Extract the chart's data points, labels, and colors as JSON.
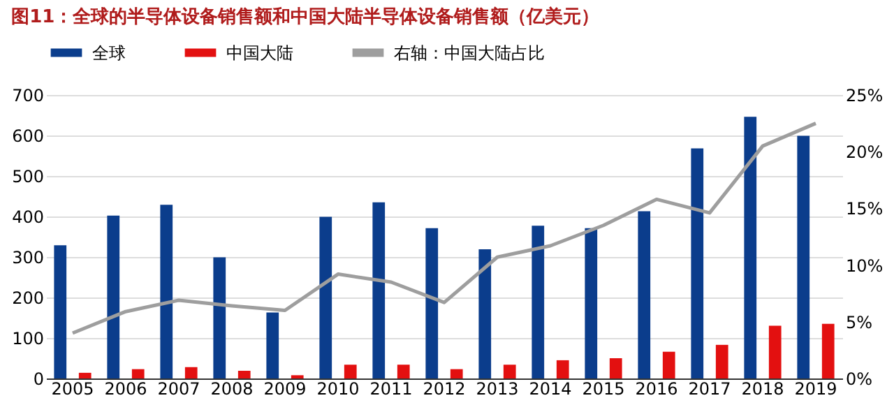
{
  "chart_data": {
    "type": "bar",
    "title": "图11：全球的半导体设备销售额和中国大陆半导体设备销售额（亿美元）",
    "categories": [
      "2005",
      "2006",
      "2007",
      "2008",
      "2009",
      "2010",
      "2011",
      "2012",
      "2013",
      "2014",
      "2015",
      "2016",
      "2017",
      "2018",
      "2019"
    ],
    "series": [
      {
        "name": "全球",
        "color": "#0b3d8c",
        "values": [
          329,
          402,
          429,
          299,
          163,
          399,
          435,
          371,
          319,
          377,
          371,
          413,
          568,
          646,
          599
        ]
      },
      {
        "name": "中国大陆",
        "color": "#e31010",
        "values": [
          14,
          23,
          28,
          19,
          8,
          34,
          34,
          23,
          34,
          45,
          50,
          66,
          83,
          130,
          135
        ]
      },
      {
        "name": "右轴：中国大陆占比",
        "type": "line",
        "axis": "y2",
        "color": "#9e9e9e",
        "values": [
          4.0,
          5.9,
          6.9,
          6.4,
          6.0,
          9.2,
          8.5,
          6.7,
          10.7,
          11.7,
          13.5,
          15.8,
          14.6,
          20.5,
          22.5
        ]
      }
    ],
    "ylim": [
      0,
      700
    ],
    "yticks": [
      0,
      100,
      200,
      300,
      400,
      500,
      600,
      700
    ],
    "y2lim": [
      0,
      25
    ],
    "y2ticks": [
      {
        "value": 0,
        "label": "0%"
      },
      {
        "value": 5,
        "label": "5%"
      },
      {
        "value": 10,
        "label": "10%"
      },
      {
        "value": 15,
        "label": "15%"
      },
      {
        "value": 20,
        "label": "20%"
      },
      {
        "value": 25,
        "label": "25%"
      }
    ],
    "grid": "y",
    "legend": "top",
    "marker": "none"
  }
}
